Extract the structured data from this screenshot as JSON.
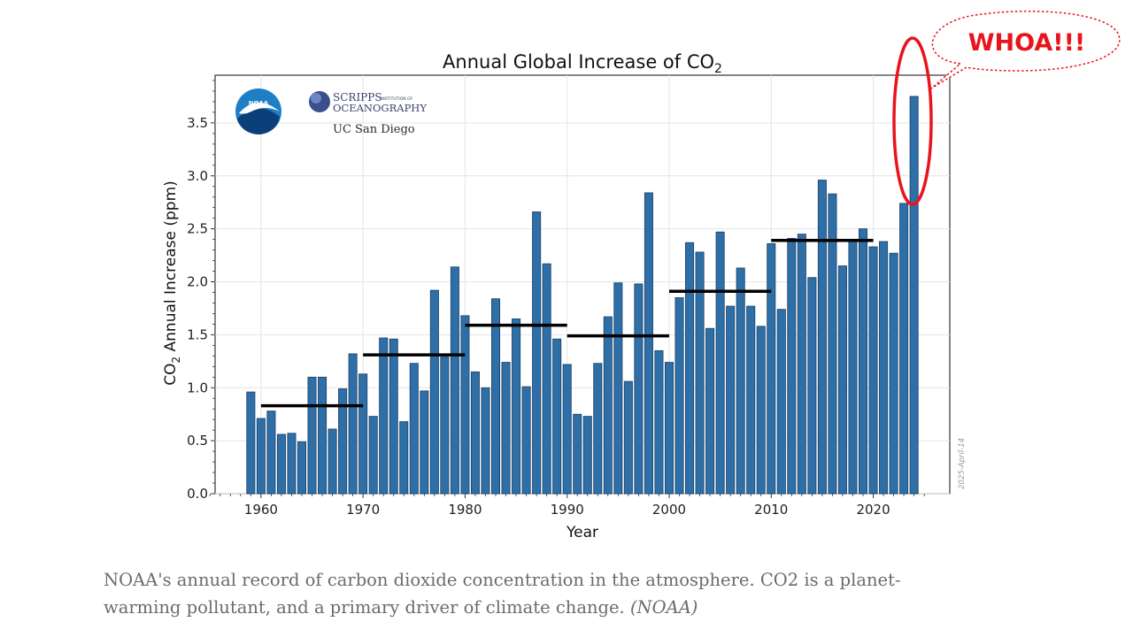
{
  "chart_data": {
    "type": "bar",
    "title": "Annual Global Increase of CO",
    "title_subscript": "2",
    "xlabel": "Year",
    "ylabel_prefix": "CO",
    "ylabel_subscript": "2",
    "ylabel_suffix": " Annual Increase (ppm)",
    "xlim": [
      1955.5,
      2027.5
    ],
    "ylim": [
      0,
      3.95
    ],
    "grid": true,
    "bar_color": "#2e6fa8",
    "x": [
      1959,
      1960,
      1961,
      1962,
      1963,
      1964,
      1965,
      1966,
      1967,
      1968,
      1969,
      1970,
      1971,
      1972,
      1973,
      1974,
      1975,
      1976,
      1977,
      1978,
      1979,
      1980,
      1981,
      1982,
      1983,
      1984,
      1985,
      1986,
      1987,
      1988,
      1989,
      1990,
      1991,
      1992,
      1993,
      1994,
      1995,
      1996,
      1997,
      1998,
      1999,
      2000,
      2001,
      2002,
      2003,
      2004,
      2005,
      2006,
      2007,
      2008,
      2009,
      2010,
      2011,
      2012,
      2013,
      2014,
      2015,
      2016,
      2017,
      2018,
      2019,
      2020,
      2021,
      2022,
      2023,
      2024
    ],
    "values": [
      0.96,
      0.71,
      0.78,
      0.56,
      0.57,
      0.49,
      1.1,
      1.1,
      0.61,
      0.99,
      1.32,
      1.13,
      0.73,
      1.47,
      1.46,
      0.68,
      1.23,
      0.97,
      1.92,
      1.29,
      2.14,
      1.68,
      1.15,
      1.0,
      1.84,
      1.24,
      1.65,
      1.01,
      2.66,
      2.17,
      1.46,
      1.22,
      0.75,
      0.73,
      1.23,
      1.67,
      1.99,
      1.06,
      1.98,
      2.84,
      1.35,
      1.24,
      1.85,
      2.37,
      2.28,
      1.56,
      2.47,
      1.77,
      2.13,
      1.77,
      1.58,
      2.36,
      1.74,
      2.41,
      2.45,
      2.04,
      2.96,
      2.83,
      2.15,
      2.38,
      2.5,
      2.33,
      2.38,
      2.27,
      2.74,
      3.75
    ],
    "decadal_averages": [
      {
        "start": 1960,
        "end": 1970,
        "value": 0.83
      },
      {
        "start": 1970,
        "end": 1980,
        "value": 1.31
      },
      {
        "start": 1980,
        "end": 1990,
        "value": 1.59
      },
      {
        "start": 1990,
        "end": 2000,
        "value": 1.49
      },
      {
        "start": 2000,
        "end": 2010,
        "value": 1.91
      },
      {
        "start": 2010,
        "end": 2020,
        "value": 2.39
      }
    ],
    "x_ticks": [
      1960,
      1970,
      1980,
      1990,
      2000,
      2010,
      2020
    ],
    "y_ticks": [
      "0.0",
      "0.5",
      "1.0",
      "1.5",
      "2.0",
      "2.5",
      "3.0",
      "3.5"
    ],
    "date_stamp": "2025-April-14"
  },
  "logos": {
    "noaa": "NOAA",
    "scripps_line1": "SCRIPPS",
    "scripps_small": "INSTITUTION OF",
    "scripps_line2": "OCEANOGRAPHY",
    "ucsd": "UC San Diego"
  },
  "annotation": {
    "text": "WHOA!!!",
    "color": "#e8141c"
  },
  "caption": {
    "text": "NOAA's annual record of carbon dioxide concentration in the atmosphere. CO2 is a planet-warming pollutant, and a primary driver of climate change.",
    "credit": "(NOAA)"
  }
}
